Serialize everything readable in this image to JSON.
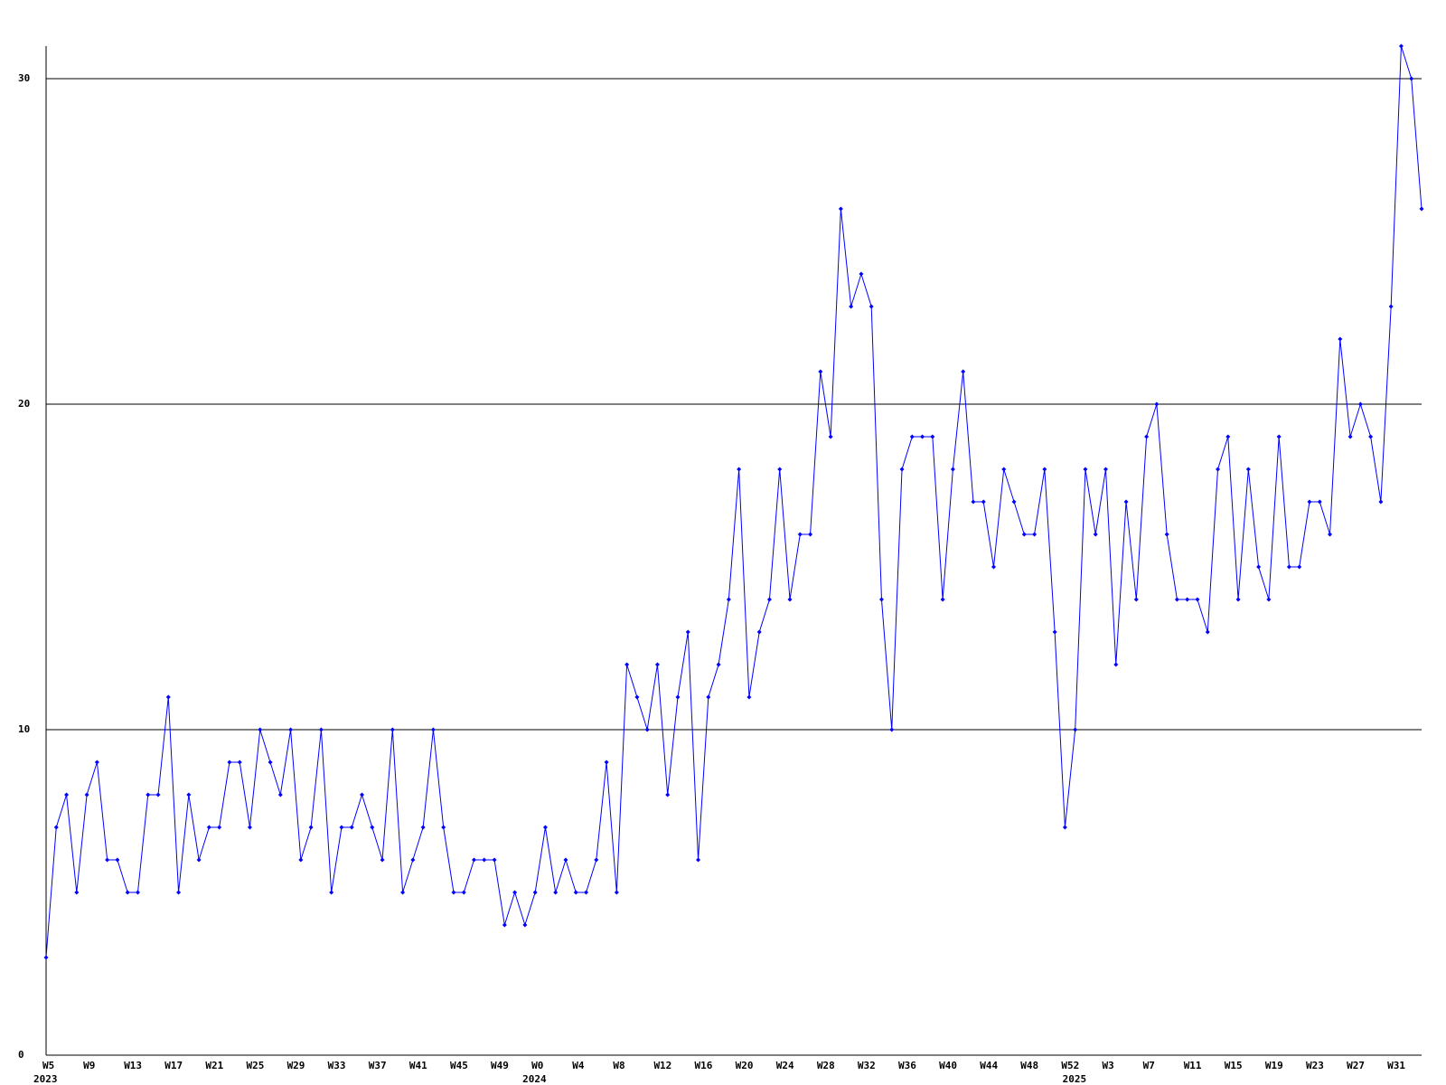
{
  "chart_data": {
    "type": "line",
    "categories": [
      "W5",
      null,
      null,
      null,
      "W9",
      null,
      null,
      null,
      "W13",
      null,
      null,
      null,
      "W17",
      null,
      null,
      null,
      "W21",
      null,
      null,
      null,
      "W25",
      null,
      null,
      null,
      "W29",
      null,
      null,
      null,
      "W33",
      null,
      null,
      null,
      "W37",
      null,
      null,
      null,
      "W41",
      null,
      null,
      null,
      "W45",
      null,
      null,
      null,
      "W49",
      null,
      null,
      null,
      "W0",
      null,
      null,
      null,
      "W4",
      null,
      null,
      null,
      "W8",
      null,
      null,
      null,
      "W12",
      null,
      null,
      null,
      "W16",
      null,
      null,
      null,
      "W20",
      null,
      null,
      null,
      "W24",
      null,
      null,
      null,
      "W28",
      null,
      null,
      null,
      "W32",
      null,
      null,
      null,
      "W36",
      null,
      null,
      null,
      "W40",
      null,
      null,
      null,
      "W44",
      null,
      null,
      null,
      "W48",
      null,
      null,
      null,
      "W52",
      null,
      null,
      null,
      "W3",
      null,
      null,
      null,
      "W7",
      null,
      null,
      null,
      "W11",
      null,
      null,
      null,
      "W15",
      null,
      null,
      null,
      "W19",
      null,
      null,
      null,
      "W23",
      null,
      null,
      null,
      "W27",
      null,
      null,
      null,
      "W31",
      null,
      null,
      null
    ],
    "category_years": [
      "2023",
      null,
      null,
      null,
      null,
      null,
      null,
      null,
      null,
      null,
      null,
      null,
      null,
      null,
      null,
      null,
      null,
      null,
      null,
      null,
      null,
      null,
      null,
      null,
      null,
      null,
      null,
      null,
      null,
      null,
      null,
      null,
      null,
      null,
      null,
      null,
      null,
      null,
      null,
      null,
      null,
      null,
      null,
      null,
      null,
      null,
      null,
      null,
      "2024",
      null,
      null,
      null,
      null,
      null,
      null,
      null,
      null,
      null,
      null,
      null,
      null,
      null,
      null,
      null,
      null,
      null,
      null,
      null,
      null,
      null,
      null,
      null,
      null,
      null,
      null,
      null,
      null,
      null,
      null,
      null,
      null,
      null,
      null,
      null,
      null,
      null,
      null,
      null,
      null,
      null,
      null,
      null,
      null,
      null,
      null,
      null,
      null,
      null,
      null,
      null,
      null,
      "2025",
      null,
      null,
      null,
      null,
      null,
      null,
      null,
      null,
      null,
      null,
      null,
      null,
      null,
      null,
      null,
      null,
      null,
      null,
      null,
      null,
      null,
      null,
      null,
      null,
      null,
      null,
      null,
      null,
      null,
      null,
      null,
      null,
      null,
      null
    ],
    "values": [
      3,
      7,
      8,
      5,
      8,
      9,
      6,
      6,
      5,
      5,
      8,
      8,
      11,
      5,
      8,
      6,
      7,
      7,
      9,
      9,
      7,
      10,
      9,
      8,
      10,
      6,
      7,
      10,
      5,
      7,
      7,
      8,
      7,
      6,
      10,
      5,
      6,
      7,
      10,
      7,
      5,
      5,
      6,
      6,
      6,
      4,
      5,
      4,
      5,
      7,
      5,
      6,
      5,
      5,
      6,
      9,
      5,
      12,
      11,
      10,
      12,
      8,
      11,
      13,
      6,
      11,
      12,
      14,
      18,
      11,
      13,
      14,
      18,
      14,
      16,
      16,
      21,
      19,
      26,
      23,
      24,
      23,
      14,
      10,
      18,
      19,
      19,
      19,
      14,
      18,
      21,
      17,
      17,
      15,
      18,
      17,
      16,
      16,
      18,
      13,
      7,
      10,
      18,
      16,
      18,
      12,
      17,
      14,
      19,
      20,
      16,
      14,
      14,
      14,
      13,
      18,
      19,
      14,
      18,
      15,
      14,
      19,
      15,
      15,
      17,
      17,
      16,
      22,
      19,
      20,
      19,
      17,
      23,
      31,
      30,
      26
    ],
    "color": "#0000ff",
    "ylim": [
      0,
      31
    ],
    "yticks": [
      0,
      10,
      20,
      30
    ],
    "grid": true
  }
}
